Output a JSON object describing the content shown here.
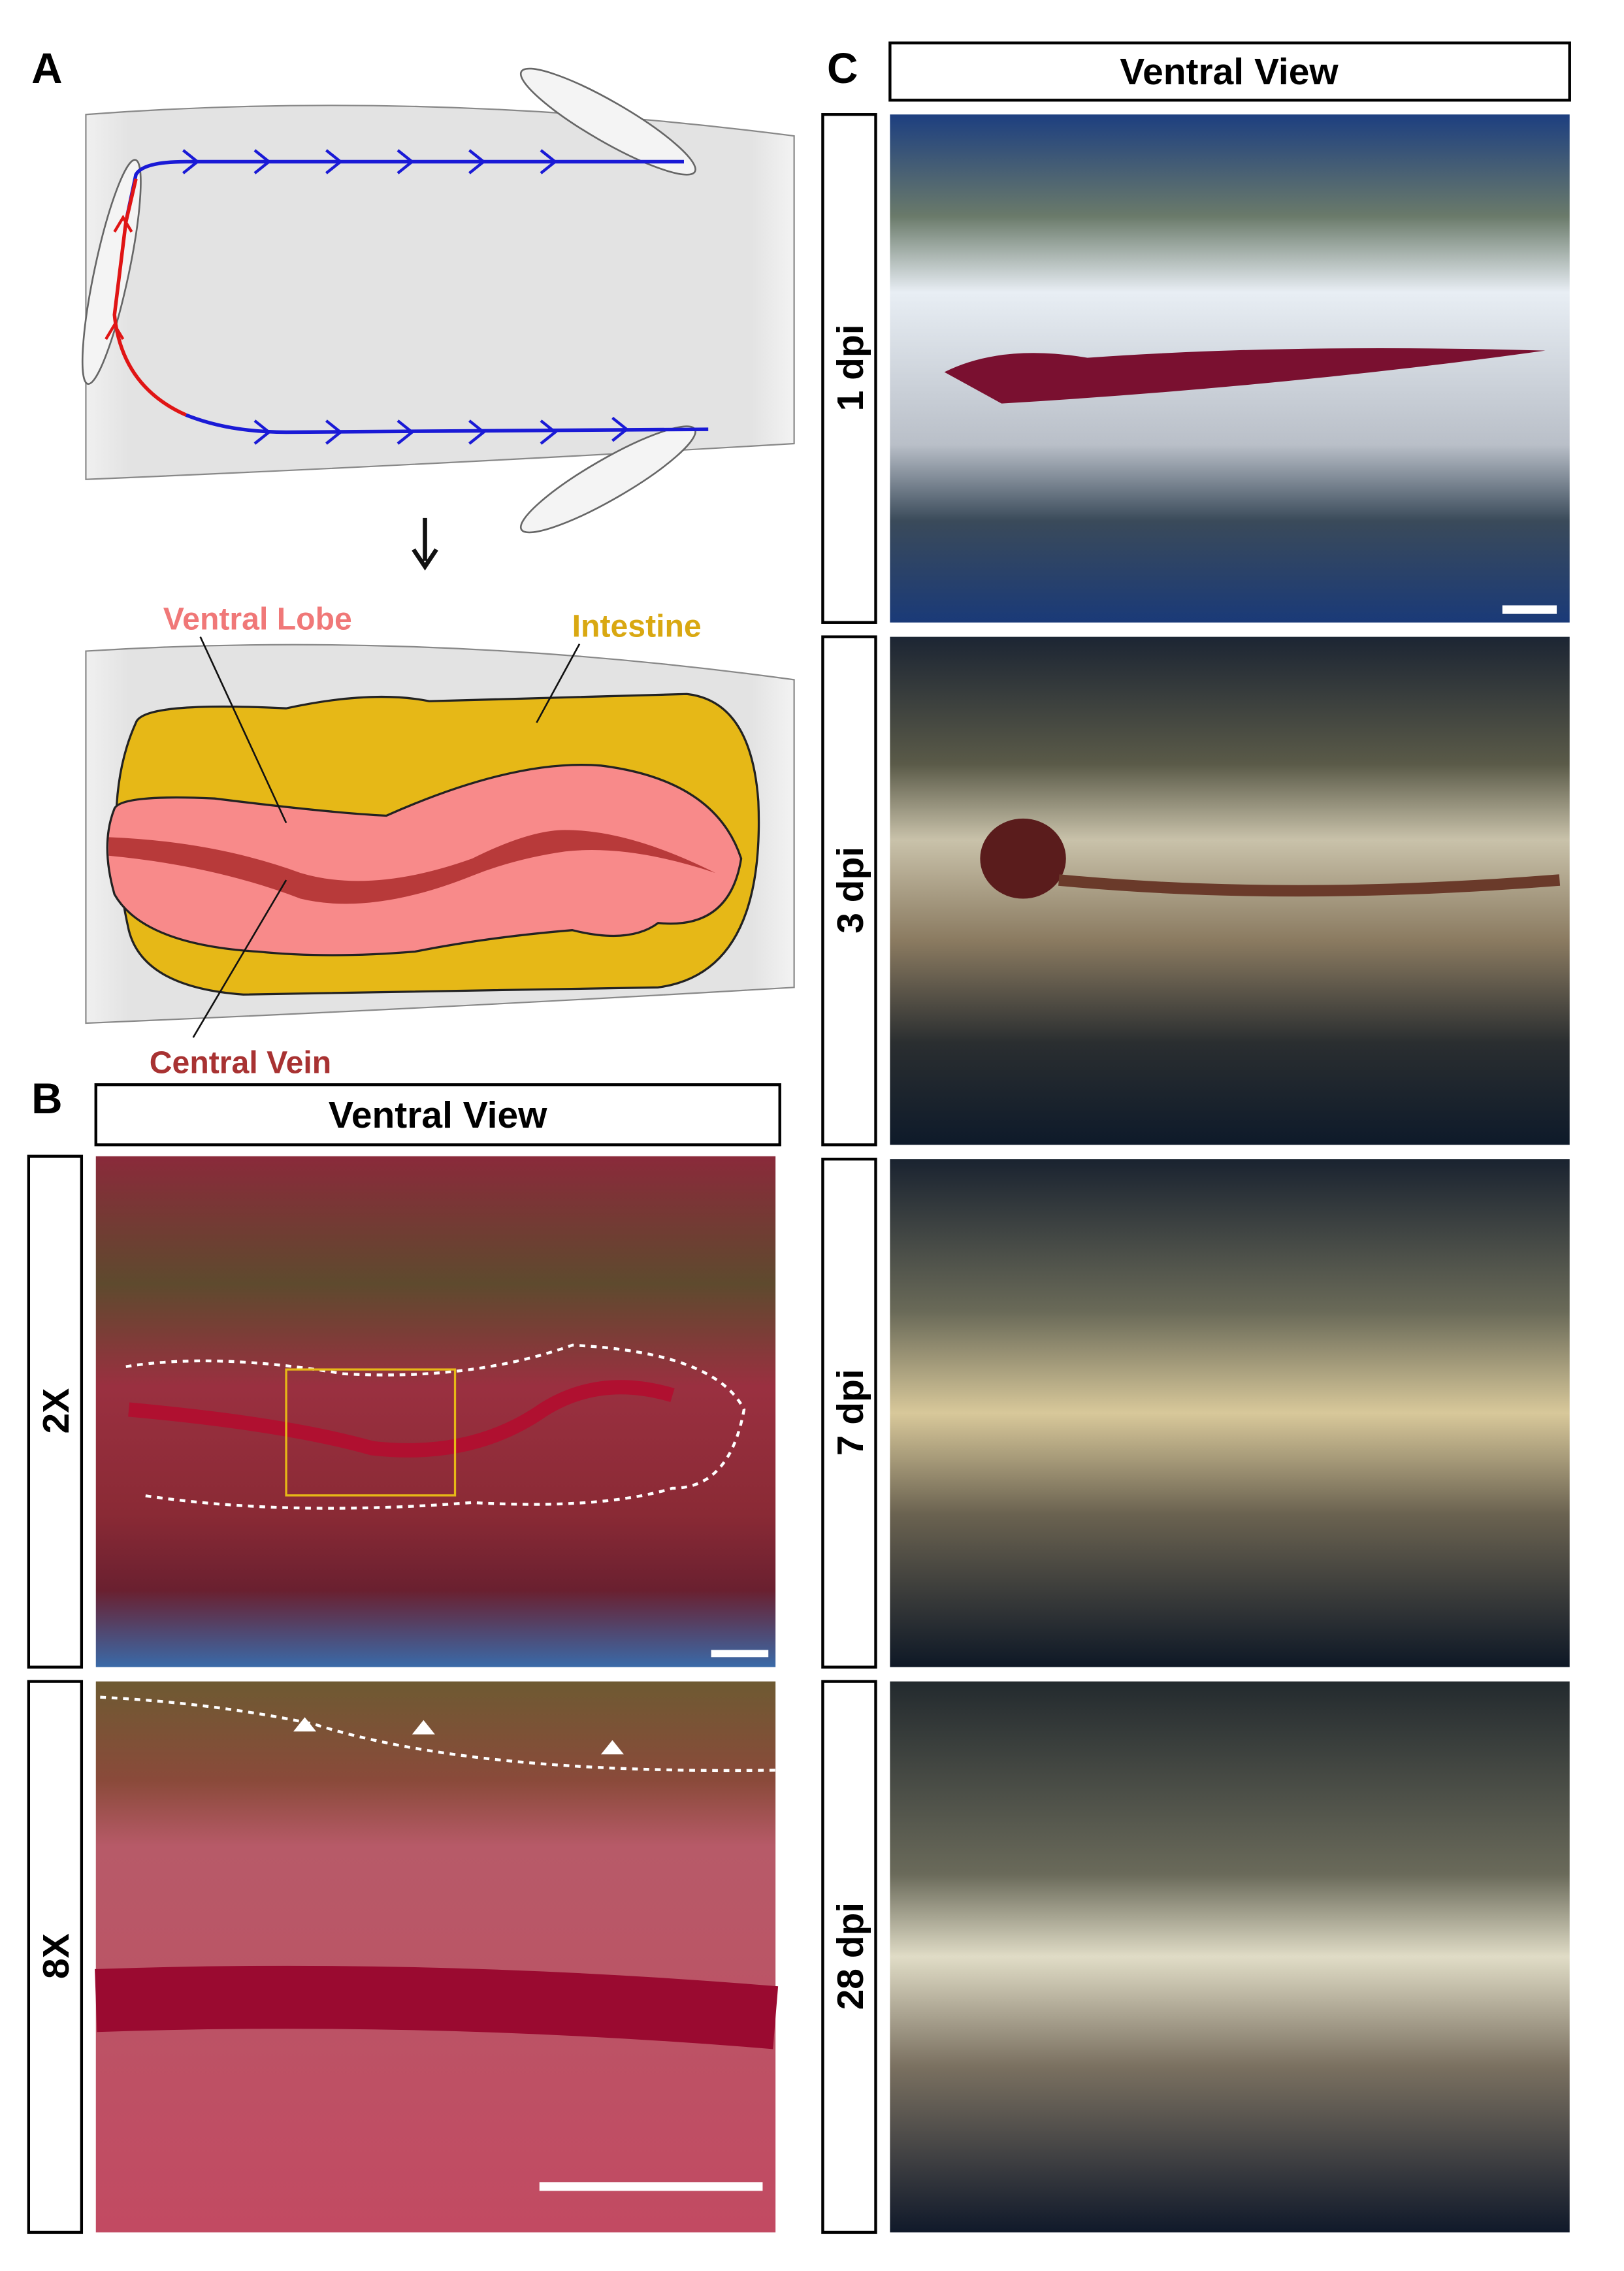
{
  "panel_a": {
    "label": "A",
    "annotations": {
      "ventral_lobe": "Ventral Lobe",
      "intestine": "Intestine",
      "central_vein": "Central Vein"
    }
  },
  "panel_b": {
    "label": "B",
    "header": "Ventral View",
    "rows": [
      "2X",
      "8X"
    ]
  },
  "panel_c": {
    "label": "C",
    "header": "Ventral View",
    "rows": [
      "1 dpi",
      "3 dpi",
      "7 dpi",
      "28 dpi"
    ]
  }
}
